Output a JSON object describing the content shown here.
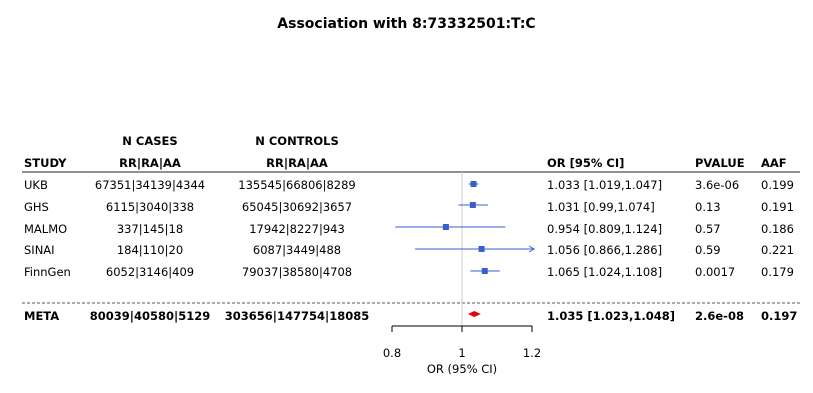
{
  "chart_data": {
    "type": "forest",
    "title": "Association with 8:73332501:T:C",
    "xlabel": "OR (95% CI)",
    "xlim": [
      0.8,
      1.2
    ],
    "xticks": [
      "0.8",
      "1",
      "1.2"
    ],
    "reference_line": 1,
    "header_top": {
      "cases": "N CASES",
      "controls": "N CONTROLS"
    },
    "columns": {
      "study": "STUDY",
      "cases": "RR|RA|AA",
      "controls": "RR|RA|AA",
      "or": "OR [95% CI]",
      "pvalue": "PVALUE",
      "aaf": "AAF"
    },
    "rows": [
      {
        "study": "UKB",
        "cases": "67351|34139|4344",
        "controls": "135545|66806|8289",
        "or": 1.033,
        "lo": 1.019,
        "hi": 1.047,
        "or_text": "1.033 [1.019,1.047]",
        "pvalue": "3.6e-06",
        "aaf": "0.199"
      },
      {
        "study": "GHS",
        "cases": "6115|3040|338",
        "controls": "65045|30692|3657",
        "or": 1.031,
        "lo": 0.99,
        "hi": 1.074,
        "or_text": "1.031 [0.99,1.074]",
        "pvalue": "0.13",
        "aaf": "0.191"
      },
      {
        "study": "MALMO",
        "cases": "337|145|18",
        "controls": "17942|8227|943",
        "or": 0.954,
        "lo": 0.809,
        "hi": 1.124,
        "or_text": "0.954 [0.809,1.124]",
        "pvalue": "0.57",
        "aaf": "0.186"
      },
      {
        "study": "SINAI",
        "cases": "184|110|20",
        "controls": "6087|3449|488",
        "or": 1.056,
        "lo": 0.866,
        "hi": 1.286,
        "or_text": "1.056 [0.866,1.286]",
        "pvalue": "0.59",
        "aaf": "0.221"
      },
      {
        "study": "FinnGen",
        "cases": "6052|3146|409",
        "controls": "79037|38580|4708",
        "or": 1.065,
        "lo": 1.024,
        "hi": 1.108,
        "or_text": "1.065 [1.024,1.108]",
        "pvalue": "0.0017",
        "aaf": "0.179"
      }
    ],
    "meta": {
      "study": "META",
      "cases": "80039|40580|5129",
      "controls": "303656|147754|18085",
      "or": 1.035,
      "lo": 1.023,
      "hi": 1.048,
      "or_text": "1.035 [1.023,1.048]",
      "pvalue": "2.6e-08",
      "aaf": "0.197"
    },
    "colors": {
      "study_marker": "#3a5fcd",
      "meta_marker": "#e8000b",
      "reference_line": "#cccccc",
      "separator": "#555555"
    }
  }
}
